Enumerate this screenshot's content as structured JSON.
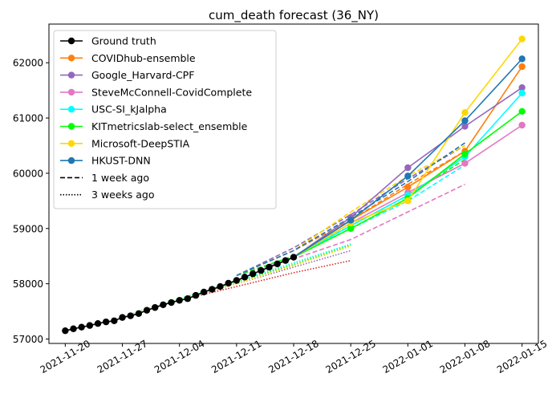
{
  "chart_data": {
    "type": "line",
    "title": "cum_death forecast (36_NY)",
    "xlabel": "",
    "ylabel": "",
    "xlim": [
      "2021-11-18",
      "2022-01-17"
    ],
    "ylim": [
      56920,
      62700
    ],
    "x_ticks": [
      "2021-11-20",
      "2021-11-27",
      "2021-12-04",
      "2021-12-11",
      "2021-12-18",
      "2021-12-25",
      "2022-01-01",
      "2022-01-08",
      "2022-01-15"
    ],
    "y_ticks": [
      57000,
      58000,
      59000,
      60000,
      61000,
      62000
    ],
    "grid": false,
    "legend_position": "upper-left",
    "ground_truth": {
      "name": "Ground truth",
      "color": "#000000",
      "x": [
        "2021-11-20",
        "2021-11-21",
        "2021-11-22",
        "2021-11-23",
        "2021-11-24",
        "2021-11-25",
        "2021-11-26",
        "2021-11-27",
        "2021-11-28",
        "2021-11-29",
        "2021-11-30",
        "2021-12-01",
        "2021-12-02",
        "2021-12-03",
        "2021-12-04",
        "2021-12-05",
        "2021-12-06",
        "2021-12-07",
        "2021-12-08",
        "2021-12-09",
        "2021-12-10",
        "2021-12-11",
        "2021-12-12",
        "2021-12-13",
        "2021-12-14",
        "2021-12-15",
        "2021-12-16",
        "2021-12-17",
        "2021-12-18"
      ],
      "y": [
        57150,
        57185,
        57215,
        57245,
        57280,
        57310,
        57330,
        57390,
        57420,
        57460,
        57520,
        57570,
        57620,
        57660,
        57700,
        57730,
        57790,
        57850,
        57900,
        57950,
        58010,
        58060,
        58120,
        58180,
        58240,
        58300,
        58360,
        58420,
        58480
      ]
    },
    "forecasts": [
      {
        "name": "COVIDhub-ensemble",
        "color": "#ff7f0e",
        "x": [
          "2021-12-25",
          "2022-01-01",
          "2022-01-08",
          "2022-01-15"
        ],
        "y": [
          59150,
          59750,
          60400,
          61930
        ]
      },
      {
        "name": "Google_Harvard-CPF",
        "color": "#9467bd",
        "x": [
          "2021-12-25",
          "2022-01-01",
          "2022-01-08",
          "2022-01-15"
        ],
        "y": [
          59200,
          60100,
          60850,
          61550
        ]
      },
      {
        "name": "SteveMcConnell-CovidComplete",
        "color": "#e377c2",
        "x": [
          "2021-12-25",
          "2022-01-01",
          "2022-01-08",
          "2022-01-15"
        ],
        "y": [
          59100,
          59650,
          60180,
          60870
        ]
      },
      {
        "name": "USC-SI_kJalpha",
        "color": "#00ffff",
        "x": [
          "2021-12-25",
          "2022-01-01",
          "2022-01-08",
          "2022-01-15"
        ],
        "y": [
          59050,
          59600,
          60300,
          61450
        ]
      },
      {
        "name": "KITmetricslab-select_ensemble",
        "color": "#00ff00",
        "x": [
          "2021-12-25",
          "2022-01-01",
          "2022-01-08",
          "2022-01-15"
        ],
        "y": [
          59000,
          59550,
          60350,
          61120
        ]
      },
      {
        "name": "Microsoft-DeepSTIA",
        "color": "#ffd700",
        "x": [
          "2021-12-25",
          "2022-01-01",
          "2022-01-08",
          "2022-01-15"
        ],
        "y": [
          59100,
          59500,
          61100,
          62430
        ]
      },
      {
        "name": "HKUST-DNN",
        "color": "#1f77b4",
        "x": [
          "2021-12-25",
          "2022-01-01",
          "2022-01-08",
          "2022-01-15"
        ],
        "y": [
          59150,
          59950,
          60950,
          62070
        ]
      }
    ],
    "week_ago": {
      "name": "1 week ago",
      "lines": [
        {
          "color": "#ff7f0e",
          "x": [
            "2021-12-11",
            "2021-12-18",
            "2021-12-25",
            "2022-01-01",
            "2022-01-08"
          ],
          "y": [
            58150,
            58600,
            59150,
            59800,
            60400
          ]
        },
        {
          "color": "#9467bd",
          "x": [
            "2021-12-11",
            "2021-12-18",
            "2021-12-25",
            "2022-01-01",
            "2022-01-08"
          ],
          "y": [
            58150,
            58650,
            59250,
            59900,
            60500
          ]
        },
        {
          "color": "#e377c2",
          "x": [
            "2021-12-11",
            "2021-12-18",
            "2021-12-25",
            "2022-01-01",
            "2022-01-08"
          ],
          "y": [
            58150,
            58450,
            58800,
            59300,
            59800
          ]
        },
        {
          "color": "#00ffff",
          "x": [
            "2021-12-11",
            "2021-12-18",
            "2021-12-25",
            "2022-01-01",
            "2022-01-08"
          ],
          "y": [
            58150,
            58500,
            59000,
            59500,
            60150
          ]
        },
        {
          "color": "#00ff00",
          "x": [
            "2021-12-11",
            "2021-12-18",
            "2021-12-25",
            "2022-01-01",
            "2022-01-08"
          ],
          "y": [
            58150,
            58500,
            59050,
            59600,
            60250
          ]
        },
        {
          "color": "#ffd700",
          "x": [
            "2021-12-11",
            "2021-12-18",
            "2021-12-25",
            "2022-01-01",
            "2022-01-08"
          ],
          "y": [
            58150,
            58600,
            59300,
            59950,
            60500
          ]
        },
        {
          "color": "#1f77b4",
          "x": [
            "2021-12-11",
            "2021-12-18",
            "2021-12-25",
            "2022-01-01",
            "2022-01-08"
          ],
          "y": [
            58150,
            58600,
            59200,
            59850,
            60550
          ]
        }
      ]
    },
    "three_weeks_ago": {
      "name": "3 weeks ago",
      "lines": [
        {
          "color": "#d62728",
          "x": [
            "2021-11-27",
            "2021-12-04",
            "2021-12-11",
            "2021-12-18",
            "2021-12-25"
          ],
          "y": [
            57400,
            57700,
            57950,
            58200,
            58420
          ]
        },
        {
          "color": "#9467bd",
          "x": [
            "2021-11-27",
            "2021-12-04",
            "2021-12-11",
            "2021-12-18",
            "2021-12-25"
          ],
          "y": [
            57400,
            57720,
            58000,
            58300,
            58600
          ]
        },
        {
          "color": "#00ffff",
          "x": [
            "2021-11-27",
            "2021-12-04",
            "2021-12-11",
            "2021-12-18",
            "2021-12-25"
          ],
          "y": [
            57400,
            57730,
            58050,
            58380,
            58720
          ]
        },
        {
          "color": "#00ff00",
          "x": [
            "2021-11-27",
            "2021-12-04",
            "2021-12-11",
            "2021-12-18",
            "2021-12-25"
          ],
          "y": [
            57400,
            57720,
            58030,
            58350,
            58700
          ]
        },
        {
          "color": "#ffd700",
          "x": [
            "2021-11-27",
            "2021-12-04",
            "2021-12-11",
            "2021-12-18",
            "2021-12-25"
          ],
          "y": [
            57400,
            57700,
            58000,
            58330,
            58680
          ]
        }
      ]
    }
  }
}
